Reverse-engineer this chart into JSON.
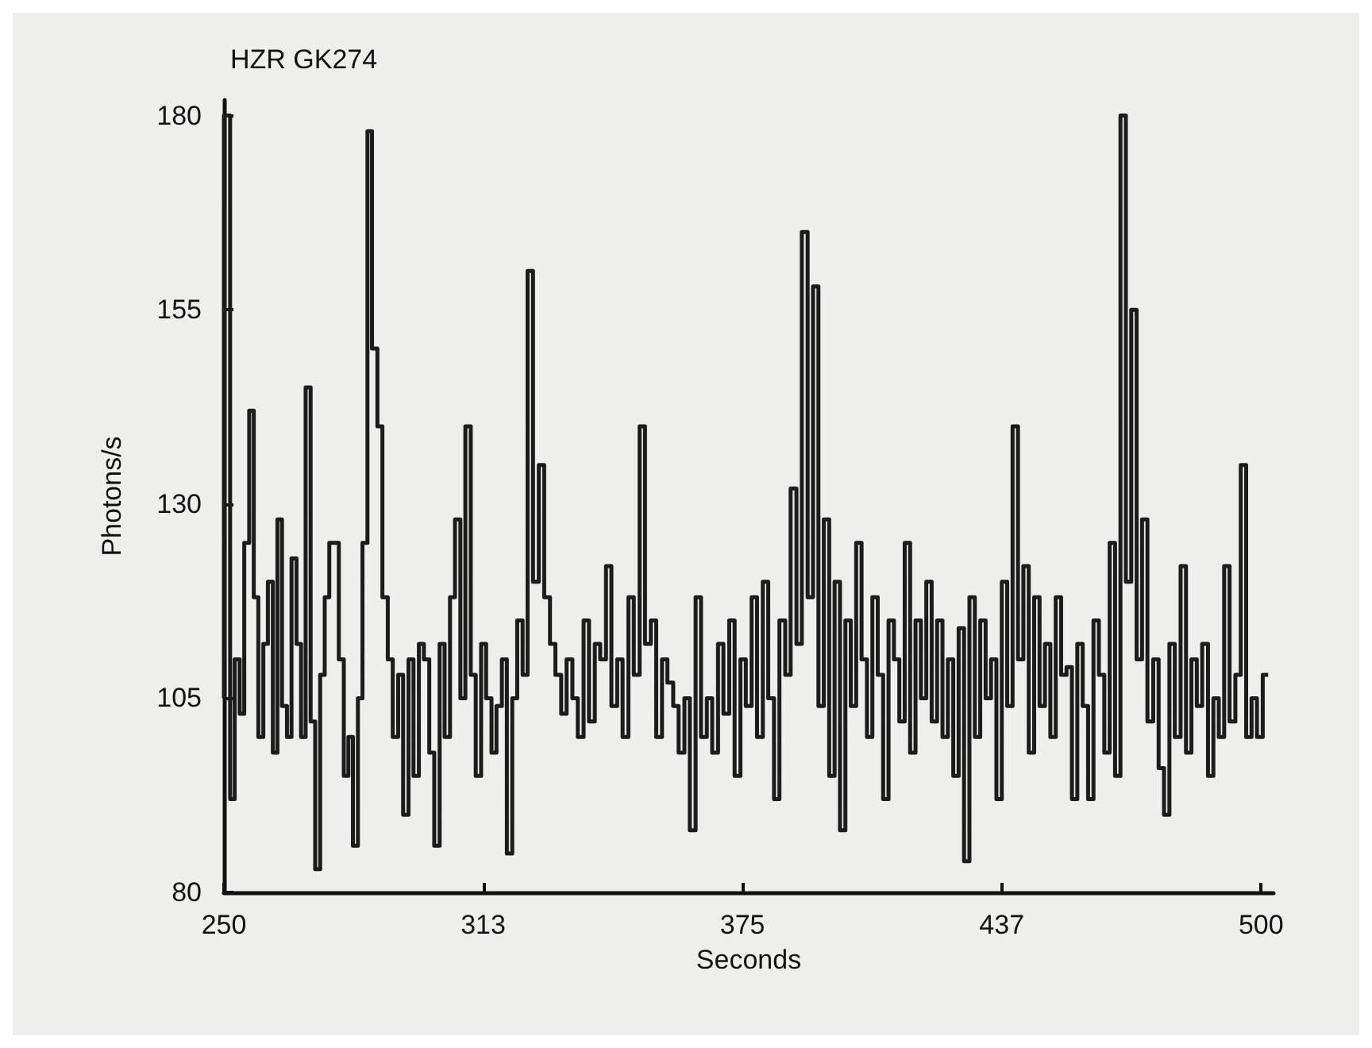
{
  "chart_data": {
    "type": "step",
    "title": "HZR GK274",
    "xlabel": "Seconds",
    "ylabel": "Photons/s",
    "x": [
      250,
      251.5,
      252.6,
      253.8,
      254.9,
      256.1,
      257.2,
      258.3,
      259.5,
      260.6,
      261.8,
      262.9,
      264,
      265.2,
      266.3,
      267.5,
      268.6,
      269.7,
      270.9,
      272,
      273.2,
      274.3,
      275.4,
      276.6,
      277.7,
      278.9,
      280,
      281.1,
      282.3,
      283.4,
      284.6,
      285.7,
      287,
      288.2,
      289.5,
      290.7,
      292,
      293.2,
      294.5,
      295.7,
      297,
      298.2,
      299.5,
      300.7,
      302,
      303.2,
      304.5,
      305.7,
      307,
      308.2,
      309.5,
      310.7,
      312,
      313.2,
      314.5,
      315.7,
      317,
      318.2,
      319.5,
      320.7,
      322,
      323.2,
      324.5,
      325.9,
      327.2,
      328.6,
      329.9,
      331.3,
      332.6,
      334,
      335.3,
      336.7,
      338,
      339.4,
      340.7,
      342.1,
      343.4,
      344.8,
      346.1,
      347.5,
      348.8,
      350.2,
      351.5,
      352.9,
      354.2,
      355.6,
      356.9,
      358.3,
      359.6,
      361,
      362.3,
      363.7,
      365,
      366.4,
      367.7,
      369.1,
      370.4,
      371.8,
      373.1,
      374.5,
      375.8,
      377.2,
      378.5,
      379.9,
      381.2,
      382.6,
      383.9,
      385.3,
      386.6,
      388,
      389.3,
      390.7,
      392,
      393.3,
      394.6,
      395.9,
      397.2,
      398.5,
      399.8,
      401.1,
      402.4,
      403.7,
      405,
      406.3,
      407.6,
      408.9,
      410.2,
      411.5,
      412.8,
      414.1,
      415.4,
      416.7,
      418,
      419.3,
      420.6,
      421.9,
      423.2,
      424.5,
      425.8,
      427.1,
      428.4,
      429.7,
      431,
      432.3,
      433.6,
      434.9,
      436.2,
      437.5,
      438.8,
      440.1,
      441.4,
      442.7,
      444,
      445.3,
      446.6,
      447.9,
      449.2,
      450.5,
      451.8,
      453.1,
      454.4,
      455.7,
      457,
      458.3,
      459.6,
      460.9,
      462.2,
      463.5,
      464.8,
      466.1,
      467.4,
      468.7,
      470,
      471.3,
      472.6,
      474,
      475.3,
      476.6,
      477.9,
      479.2,
      480.6,
      481.9,
      483.2,
      484.5,
      485.8,
      487.2,
      488.5,
      489.8,
      491.1,
      492.4,
      493.8,
      495.1,
      496.4,
      497.7,
      499,
      500.4,
      501.7
    ],
    "series": [
      {
        "color": "#1c1c1c",
        "values": [
          105,
          180,
          92,
          110,
          103,
          125,
          142,
          118,
          100,
          112,
          120,
          98,
          128,
          104,
          100,
          123,
          112,
          100,
          145,
          102,
          83,
          108,
          118,
          125,
          125,
          110,
          95,
          100,
          86,
          105,
          125,
          178,
          150,
          140,
          118,
          110,
          100,
          108,
          90,
          110,
          95,
          112,
          110,
          98,
          86,
          112,
          100,
          118,
          128,
          105,
          140,
          108,
          95,
          112,
          105,
          98,
          104,
          110,
          85,
          105,
          115,
          108,
          160,
          120,
          135,
          118,
          112,
          108,
          103,
          110,
          105,
          100,
          115,
          102,
          112,
          110,
          122,
          104,
          110,
          100,
          118,
          108,
          140,
          112,
          115,
          100,
          110,
          107,
          104,
          98,
          105,
          88,
          118,
          100,
          105,
          98,
          112,
          103,
          115,
          95,
          110,
          104,
          118,
          100,
          120,
          105,
          92,
          115,
          108,
          132,
          112,
          165,
          118,
          158,
          104,
          128,
          95,
          120,
          88,
          115,
          104,
          125,
          110,
          100,
          118,
          108,
          92,
          115,
          110,
          102,
          125,
          98,
          115,
          105,
          120,
          102,
          115,
          100,
          110,
          95,
          114,
          84,
          118,
          100,
          115,
          105,
          110,
          92,
          120,
          104,
          140,
          110,
          122,
          98,
          118,
          104,
          112,
          100,
          118,
          108,
          109,
          92,
          112,
          104,
          92,
          115,
          108,
          98,
          125,
          95,
          180,
          120,
          155,
          110,
          128,
          102,
          110,
          96,
          90,
          112,
          100,
          122,
          98,
          110,
          104,
          112,
          95,
          105,
          100,
          122,
          102,
          108,
          135,
          100,
          105,
          100,
          108
        ]
      }
    ],
    "xlim": [
      250,
      503
    ],
    "ylim": [
      80,
      182
    ],
    "xticks": [
      250,
      {
        "value": 312.5,
        "label": "313"
      },
      375,
      {
        "value": 437.5,
        "label": "437"
      },
      500
    ],
    "yticks": [
      80,
      105,
      130,
      155,
      180
    ],
    "grid": false,
    "marker": "none",
    "line_style": "solid"
  }
}
